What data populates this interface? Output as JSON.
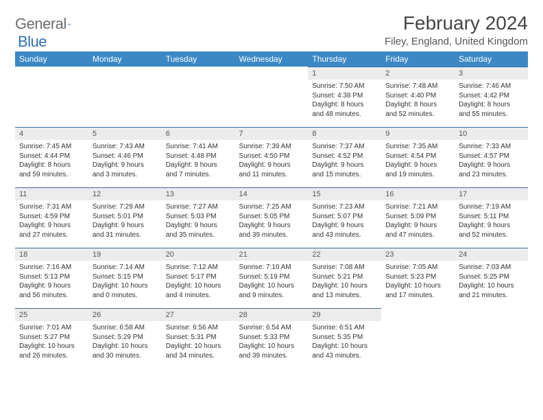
{
  "logo": {
    "textA": "General",
    "textB": "Blue"
  },
  "title": "February 2024",
  "location": "Filey, England, United Kingdom",
  "colors": {
    "header_bg": "#3b88c4",
    "daynum_bg": "#ececec",
    "rule": "#3b6e9e",
    "logo_gray": "#6b6b6b",
    "logo_blue": "#2f6fb0"
  },
  "dayHeaders": [
    "Sunday",
    "Monday",
    "Tuesday",
    "Wednesday",
    "Thursday",
    "Friday",
    "Saturday"
  ],
  "weeks": [
    [
      null,
      null,
      null,
      null,
      {
        "n": "1",
        "sr": "Sunrise: 7:50 AM",
        "ss": "Sunset: 4:38 PM",
        "d1": "Daylight: 8 hours",
        "d2": "and 48 minutes."
      },
      {
        "n": "2",
        "sr": "Sunrise: 7:48 AM",
        "ss": "Sunset: 4:40 PM",
        "d1": "Daylight: 8 hours",
        "d2": "and 52 minutes."
      },
      {
        "n": "3",
        "sr": "Sunrise: 7:46 AM",
        "ss": "Sunset: 4:42 PM",
        "d1": "Daylight: 8 hours",
        "d2": "and 55 minutes."
      }
    ],
    [
      {
        "n": "4",
        "sr": "Sunrise: 7:45 AM",
        "ss": "Sunset: 4:44 PM",
        "d1": "Daylight: 8 hours",
        "d2": "and 59 minutes."
      },
      {
        "n": "5",
        "sr": "Sunrise: 7:43 AM",
        "ss": "Sunset: 4:46 PM",
        "d1": "Daylight: 9 hours",
        "d2": "and 3 minutes."
      },
      {
        "n": "6",
        "sr": "Sunrise: 7:41 AM",
        "ss": "Sunset: 4:48 PM",
        "d1": "Daylight: 9 hours",
        "d2": "and 7 minutes."
      },
      {
        "n": "7",
        "sr": "Sunrise: 7:39 AM",
        "ss": "Sunset: 4:50 PM",
        "d1": "Daylight: 9 hours",
        "d2": "and 11 minutes."
      },
      {
        "n": "8",
        "sr": "Sunrise: 7:37 AM",
        "ss": "Sunset: 4:52 PM",
        "d1": "Daylight: 9 hours",
        "d2": "and 15 minutes."
      },
      {
        "n": "9",
        "sr": "Sunrise: 7:35 AM",
        "ss": "Sunset: 4:54 PM",
        "d1": "Daylight: 9 hours",
        "d2": "and 19 minutes."
      },
      {
        "n": "10",
        "sr": "Sunrise: 7:33 AM",
        "ss": "Sunset: 4:57 PM",
        "d1": "Daylight: 9 hours",
        "d2": "and 23 minutes."
      }
    ],
    [
      {
        "n": "11",
        "sr": "Sunrise: 7:31 AM",
        "ss": "Sunset: 4:59 PM",
        "d1": "Daylight: 9 hours",
        "d2": "and 27 minutes."
      },
      {
        "n": "12",
        "sr": "Sunrise: 7:29 AM",
        "ss": "Sunset: 5:01 PM",
        "d1": "Daylight: 9 hours",
        "d2": "and 31 minutes."
      },
      {
        "n": "13",
        "sr": "Sunrise: 7:27 AM",
        "ss": "Sunset: 5:03 PM",
        "d1": "Daylight: 9 hours",
        "d2": "and 35 minutes."
      },
      {
        "n": "14",
        "sr": "Sunrise: 7:25 AM",
        "ss": "Sunset: 5:05 PM",
        "d1": "Daylight: 9 hours",
        "d2": "and 39 minutes."
      },
      {
        "n": "15",
        "sr": "Sunrise: 7:23 AM",
        "ss": "Sunset: 5:07 PM",
        "d1": "Daylight: 9 hours",
        "d2": "and 43 minutes."
      },
      {
        "n": "16",
        "sr": "Sunrise: 7:21 AM",
        "ss": "Sunset: 5:09 PM",
        "d1": "Daylight: 9 hours",
        "d2": "and 47 minutes."
      },
      {
        "n": "17",
        "sr": "Sunrise: 7:19 AM",
        "ss": "Sunset: 5:11 PM",
        "d1": "Daylight: 9 hours",
        "d2": "and 52 minutes."
      }
    ],
    [
      {
        "n": "18",
        "sr": "Sunrise: 7:16 AM",
        "ss": "Sunset: 5:13 PM",
        "d1": "Daylight: 9 hours",
        "d2": "and 56 minutes."
      },
      {
        "n": "19",
        "sr": "Sunrise: 7:14 AM",
        "ss": "Sunset: 5:15 PM",
        "d1": "Daylight: 10 hours",
        "d2": "and 0 minutes."
      },
      {
        "n": "20",
        "sr": "Sunrise: 7:12 AM",
        "ss": "Sunset: 5:17 PM",
        "d1": "Daylight: 10 hours",
        "d2": "and 4 minutes."
      },
      {
        "n": "21",
        "sr": "Sunrise: 7:10 AM",
        "ss": "Sunset: 5:19 PM",
        "d1": "Daylight: 10 hours",
        "d2": "and 9 minutes."
      },
      {
        "n": "22",
        "sr": "Sunrise: 7:08 AM",
        "ss": "Sunset: 5:21 PM",
        "d1": "Daylight: 10 hours",
        "d2": "and 13 minutes."
      },
      {
        "n": "23",
        "sr": "Sunrise: 7:05 AM",
        "ss": "Sunset: 5:23 PM",
        "d1": "Daylight: 10 hours",
        "d2": "and 17 minutes."
      },
      {
        "n": "24",
        "sr": "Sunrise: 7:03 AM",
        "ss": "Sunset: 5:25 PM",
        "d1": "Daylight: 10 hours",
        "d2": "and 21 minutes."
      }
    ],
    [
      {
        "n": "25",
        "sr": "Sunrise: 7:01 AM",
        "ss": "Sunset: 5:27 PM",
        "d1": "Daylight: 10 hours",
        "d2": "and 26 minutes."
      },
      {
        "n": "26",
        "sr": "Sunrise: 6:58 AM",
        "ss": "Sunset: 5:29 PM",
        "d1": "Daylight: 10 hours",
        "d2": "and 30 minutes."
      },
      {
        "n": "27",
        "sr": "Sunrise: 6:56 AM",
        "ss": "Sunset: 5:31 PM",
        "d1": "Daylight: 10 hours",
        "d2": "and 34 minutes."
      },
      {
        "n": "28",
        "sr": "Sunrise: 6:54 AM",
        "ss": "Sunset: 5:33 PM",
        "d1": "Daylight: 10 hours",
        "d2": "and 39 minutes."
      },
      {
        "n": "29",
        "sr": "Sunrise: 6:51 AM",
        "ss": "Sunset: 5:35 PM",
        "d1": "Daylight: 10 hours",
        "d2": "and 43 minutes."
      },
      null,
      null
    ]
  ]
}
